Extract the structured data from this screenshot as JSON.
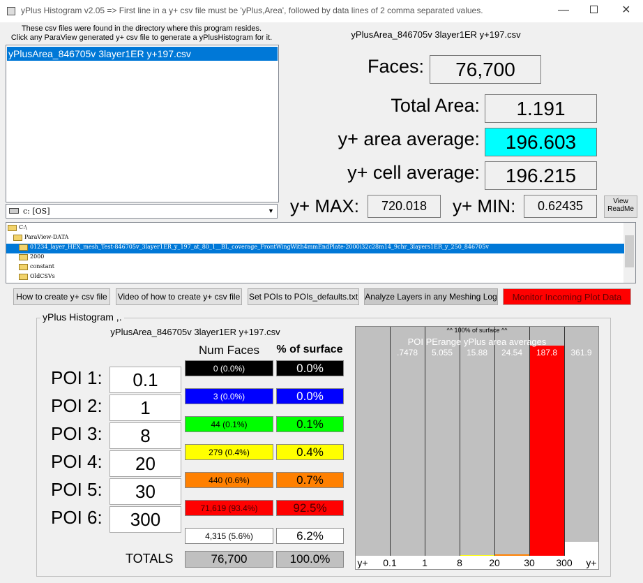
{
  "window": {
    "title": "yPlus Histogram v2.05 => First line in a y+ csv file must be 'yPlus,Area', followed by data lines of 2 comma separated values."
  },
  "info": [
    "These csv files were found in the directory where this program resides.",
    "Click any ParaView generated y+ csv file to generate a yPlusHistogram for it."
  ],
  "file_list": [
    "yPlusArea_846705v 3layer1ER y+197.csv"
  ],
  "drive": "c: [OS]",
  "tree": [
    "C:\\",
    "ParaView-DATA",
    "01234_layer_HEX_mesh_Test-846705v_3layer1ER_y_197_at_80_1__BL_coverage_FrontWingWith4mmEndPlate-2000i32c28m14_9chr_3layers1ER_y_250_846705v",
    "2000",
    "constant",
    "OldCSVs"
  ],
  "stats": {
    "file": "yPlusArea_846705v 3layer1ER y+197.csv",
    "faces_label": "Faces:",
    "faces": "76,700",
    "total_area_label": "Total Area:",
    "total_area": "1.191",
    "area_avg_label": "y+ area average:",
    "area_avg": "196.603",
    "cell_avg_label": "y+ cell average:",
    "cell_avg": "196.215",
    "max_label": "y+ MAX:",
    "max": "720.018",
    "min_label": "y+ MIN:",
    "min": "0.62435",
    "readme": [
      "View",
      "ReadMe"
    ]
  },
  "buttons": [
    "How to create y+ csv file",
    "Video of how to create y+ csv file",
    "Set POIs to POIs_defaults.txt",
    "Analyze Layers in any Meshing Log",
    "Monitor Incoming Plot Data"
  ],
  "histogram": {
    "title": "yPlus Histogram ,.",
    "file": "yPlusArea_846705v 3layer1ER y+197.csv",
    "col_faces": "Num Faces",
    "col_surface": "% of surface",
    "poi_labels": [
      "POI 1:",
      "POI 2:",
      "POI 3:",
      "POI 4:",
      "POI 5:",
      "POI 6:"
    ],
    "poi_values": [
      "0.1",
      "1",
      "8",
      "20",
      "30",
      "300"
    ],
    "faces": [
      "0 (0.0%)",
      "3 (0.0%)",
      "44 (0.1%)",
      "279 (0.4%)",
      "440 (0.6%)",
      "71,619 (93.4%)",
      "4,315 (5.6%)"
    ],
    "surface": [
      0,
      0,
      0.1,
      0.4,
      0.7,
      92.5,
      6.2
    ],
    "surface_labels": [
      "0.0%",
      "0.0%",
      "0.1%",
      "0.4%",
      "0.7%",
      "92.5%",
      "6.2%"
    ],
    "colors": [
      "#000000",
      "#0000ff",
      "#00ff00",
      "#ffff00",
      "#ff8000",
      "#ff0000",
      "#ffffff"
    ],
    "totals_label": "TOTALS",
    "totals_faces": "76,700",
    "totals_surface": "100.0%"
  },
  "plot": {
    "top_note": "^^ 100% of surface ^^",
    "subtitle": "POI PErange yPlus area averages",
    "averages": [
      ".7478",
      "5.055",
      "15.88",
      "24.54",
      "187.8",
      "361.9"
    ],
    "x_labels": [
      "y+",
      "0.1",
      "1",
      "8",
      "20",
      "30",
      "300",
      "y+"
    ],
    "ylim": [
      0,
      100
    ]
  }
}
